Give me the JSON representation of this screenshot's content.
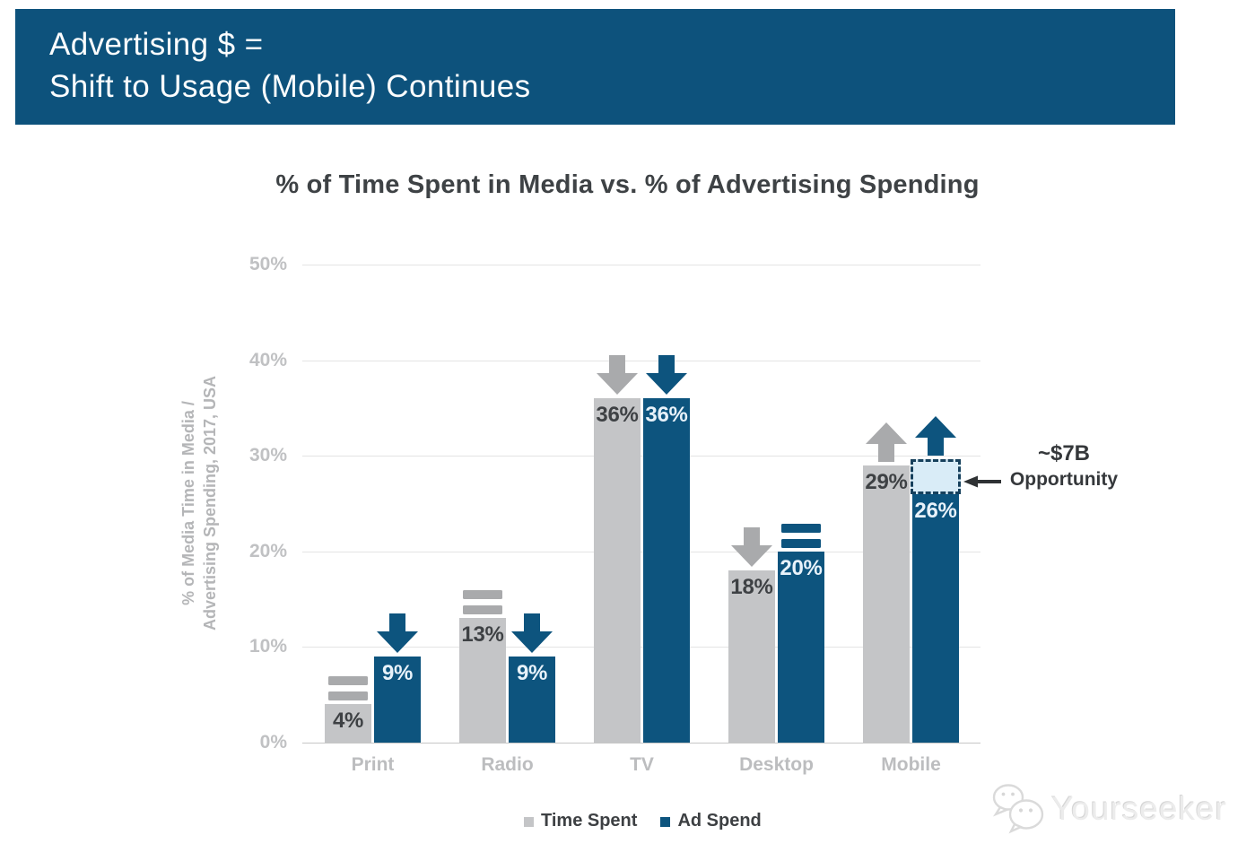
{
  "banner": {
    "title_line1": "Advertising $ =",
    "title_line2": "Shift to Usage (Mobile) Continues"
  },
  "colors": {
    "banner_bg": "#0d527c",
    "accent_blue": "#0d547e",
    "bar_gray": "#c4c5c7",
    "trend_gray": "#a9aaac",
    "opportunity_fill": "#d9ecf7",
    "opportunity_border": "#16405c",
    "dark_text": "#3d4043",
    "axis_text": "#bcbdbf"
  },
  "chart_data": {
    "type": "bar",
    "title": "% of Time Spent in Media vs. % of Advertising Spending",
    "ylabel": "% of Media Time in Media / Advertising Spending, 2017, USA",
    "ylabel_lines": [
      "% of Media Time in Media /",
      "Advertising Spending, 2017, USA"
    ],
    "ylim": [
      0,
      50
    ],
    "yticks": [
      50,
      40,
      30,
      20,
      10,
      0
    ],
    "ytick_labels": [
      "50%",
      "40%",
      "30%",
      "20%",
      "10%",
      "0%"
    ],
    "grid": true,
    "categories": [
      "Print",
      "Radio",
      "TV",
      "Desktop",
      "Mobile"
    ],
    "series": [
      {
        "name": "Time Spent",
        "color": "#c4c5c7",
        "label_color": "#3e4144",
        "trend_color": "#a9aaac",
        "values": [
          4,
          13,
          36,
          18,
          29
        ],
        "value_labels": [
          "4%",
          "13%",
          "36%",
          "18%",
          "29%"
        ],
        "trends": [
          "equal",
          "equal",
          "down",
          "down",
          "up"
        ]
      },
      {
        "name": "Ad Spend",
        "color": "#0d547e",
        "label_color": "#e8f2fa",
        "trend_color": "#0d547e",
        "values": [
          9,
          9,
          36,
          20,
          26
        ],
        "value_labels": [
          "9%",
          "9%",
          "36%",
          "20%",
          "26%"
        ],
        "trends": [
          "down",
          "down",
          "down",
          "equal",
          "up"
        ]
      }
    ],
    "legend_position": "bottom",
    "annotation": {
      "line1": "~$7B",
      "line2": "Opportunity",
      "category": "Mobile",
      "series": "Ad Spend",
      "box_from": 26,
      "box_to": 29.6
    }
  },
  "watermark": {
    "text": "Yourseeker"
  }
}
